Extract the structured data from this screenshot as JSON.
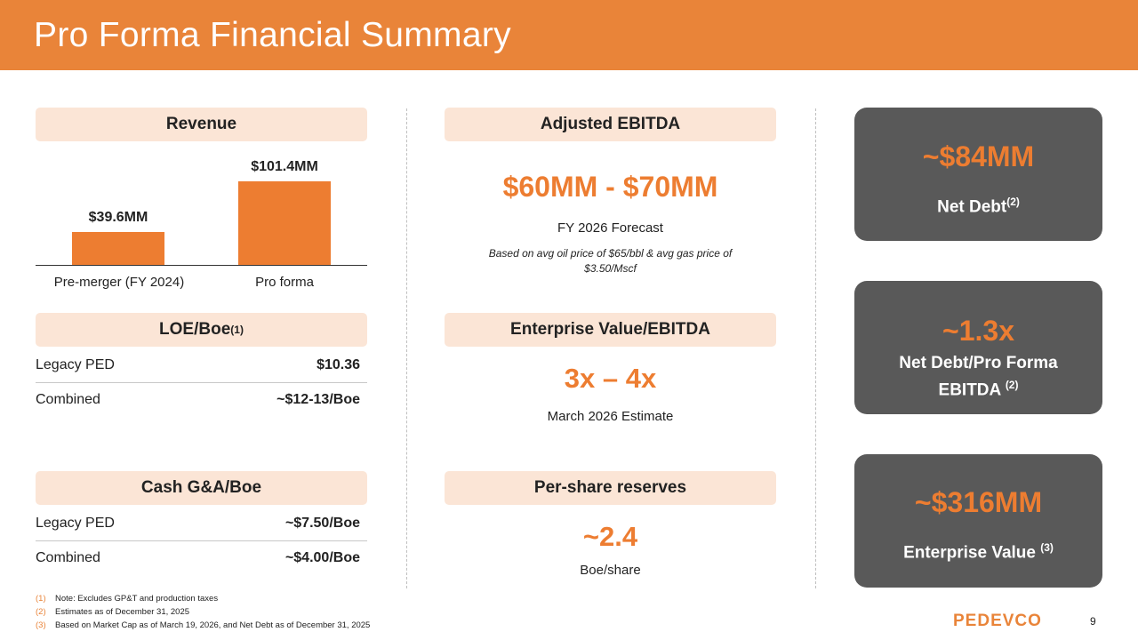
{
  "header": {
    "title": "Pro Forma Financial Summary"
  },
  "revenue": {
    "heading": "Revenue",
    "chart_data": {
      "type": "bar",
      "categories": [
        "Pre-merger (FY 2024)",
        "Pro forma"
      ],
      "values": [
        39.6,
        101.4
      ],
      "value_labels": [
        "$39.6MM",
        "$101.4MM"
      ]
    }
  },
  "loe": {
    "heading": "LOE/Boe",
    "heading_sup": "(1)",
    "rows": [
      {
        "label": "Legacy PED",
        "value": "$10.36"
      },
      {
        "label": "Combined",
        "value": "~$12-13/Boe"
      }
    ]
  },
  "gna": {
    "heading": "Cash G&A/Boe",
    "rows": [
      {
        "label": "Legacy PED",
        "value": "~$7.50/Boe"
      },
      {
        "label": "Combined",
        "value": "~$4.00/Boe"
      }
    ]
  },
  "ebitda": {
    "heading": "Adjusted EBITDA",
    "value": "$60MM - $70MM",
    "sub": "FY 2026 Forecast",
    "note_line1": "Based on avg oil price of $65/bbl & avg gas price of",
    "note_line2": "$3.50/Mscf"
  },
  "ev_ebitda": {
    "heading": "Enterprise Value/EBITDA",
    "value": "3x – 4x",
    "sub": "March 2026 Estimate"
  },
  "reserves": {
    "heading": "Per-share reserves",
    "value": "~2.4",
    "sub": "Boe/share"
  },
  "cards": [
    {
      "value": "~$84MM",
      "label": "Net Debt",
      "sup": "(2)"
    },
    {
      "value": "~1.3x",
      "label_line1": "Net Debt/Pro Forma",
      "label_line2": "EBITDA ",
      "sup": "(2)"
    },
    {
      "value": "~$316MM",
      "label": "Enterprise Value ",
      "sup": "(3)"
    }
  ],
  "footnotes": [
    {
      "num": "(1)",
      "text": "Note: Excludes GP&T and production taxes"
    },
    {
      "num": "(2)",
      "text": "Estimates as of December 31, 2025"
    },
    {
      "num": "(3)",
      "text": "Based on Market Cap as of March 19, 2026, and Net Debt as of December 31, 2025"
    }
  ],
  "logo": "PEDEVCO",
  "page_number": "9",
  "colors": {
    "accent": "#e98439",
    "bar": "#ed7d31",
    "pill": "#fbe5d6",
    "card": "#595959"
  }
}
